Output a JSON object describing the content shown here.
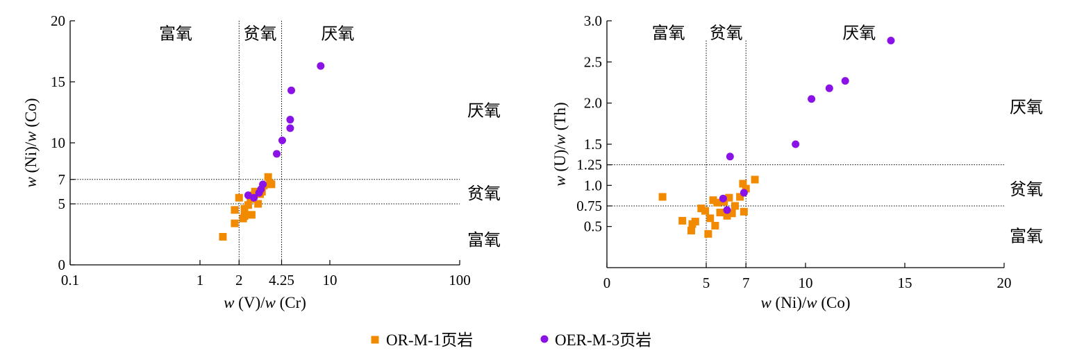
{
  "colors": {
    "or_m_1": "#F28A00",
    "oer_m_3": "#8A12E6",
    "axis": "#000000"
  },
  "legend": {
    "items": [
      {
        "label": "OR-M-1页岩",
        "marker": "square",
        "color_key": "or_m_1"
      },
      {
        "label": "OER-M-3页岩",
        "marker": "circle",
        "color_key": "oer_m_3"
      }
    ]
  },
  "chart_data": [
    {
      "type": "scatter",
      "xlabel_parts": [
        {
          "text": "w",
          "italic": true
        },
        {
          "text": " (V)/",
          "italic": false
        },
        {
          "text": "w",
          "italic": true
        },
        {
          "text": " (Cr)",
          "italic": false
        }
      ],
      "ylabel_parts": [
        {
          "text": "w",
          "italic": true
        },
        {
          "text": " (Ni)/",
          "italic": false
        },
        {
          "text": "w",
          "italic": true
        },
        {
          "text": " (Co)",
          "italic": false
        }
      ],
      "x_scale": "log",
      "xlim": [
        0.1,
        100
      ],
      "ylim": [
        0,
        20
      ],
      "x_ticks": [
        {
          "value": 0.1,
          "label": "0.1"
        },
        {
          "value": 1,
          "label": "1"
        },
        {
          "value": 2,
          "label": "2"
        },
        {
          "value": 4.25,
          "label": "4.25"
        },
        {
          "value": 10,
          "label": "10"
        },
        {
          "value": 100,
          "label": "100"
        }
      ],
      "y_ticks": [
        {
          "value": 0,
          "label": "0"
        },
        {
          "value": 5,
          "label": "5"
        },
        {
          "value": 7,
          "label": "7"
        },
        {
          "value": 10,
          "label": "10"
        },
        {
          "value": 15,
          "label": "15"
        },
        {
          "value": 20,
          "label": "20"
        }
      ],
      "vlines": [
        2,
        4.25
      ],
      "hlines": [
        5,
        7
      ],
      "zones_top": [
        {
          "label": "富氧",
          "x": 0.65,
          "y": 19
        },
        {
          "label": "贫氧",
          "x": 2.9,
          "y": 19
        },
        {
          "label": "厌氧",
          "x": 11.5,
          "y": 19
        }
      ],
      "zones_right": [
        {
          "label": "厌氧",
          "y": 12.7
        },
        {
          "label": "贫氧",
          "y": 5.9
        },
        {
          "label": "富氧",
          "y": 2.1
        }
      ],
      "series": [
        {
          "name": "OR-M-1页岩",
          "marker": "square",
          "color_key": "or_m_1",
          "points": [
            [
              1.5,
              2.3
            ],
            [
              1.85,
              4.5
            ],
            [
              1.85,
              3.4
            ],
            [
              2.0,
              5.5
            ],
            [
              2.15,
              3.8
            ],
            [
              2.2,
              4.0
            ],
            [
              2.2,
              4.6
            ],
            [
              2.35,
              4.9
            ],
            [
              2.45,
              5.4
            ],
            [
              2.5,
              4.1
            ],
            [
              2.6,
              5.7
            ],
            [
              2.65,
              6.0
            ],
            [
              2.8,
              5.0
            ],
            [
              2.9,
              5.8
            ],
            [
              3.0,
              6.0
            ],
            [
              3.1,
              6.5
            ],
            [
              3.35,
              7.2
            ],
            [
              3.45,
              6.7
            ],
            [
              3.55,
              6.6
            ]
          ]
        },
        {
          "name": "OER-M-3页岩",
          "marker": "circle",
          "color_key": "oer_m_3",
          "points": [
            [
              2.35,
              5.7
            ],
            [
              2.6,
              5.5
            ],
            [
              2.85,
              5.9
            ],
            [
              2.95,
              6.2
            ],
            [
              3.05,
              6.6
            ],
            [
              3.9,
              9.1
            ],
            [
              4.3,
              10.2
            ],
            [
              4.95,
              11.2
            ],
            [
              4.95,
              11.9
            ],
            [
              5.05,
              14.3
            ],
            [
              8.5,
              16.3
            ]
          ]
        }
      ]
    },
    {
      "type": "scatter",
      "xlabel_parts": [
        {
          "text": "w",
          "italic": true
        },
        {
          "text": " (Ni)/",
          "italic": false
        },
        {
          "text": "w",
          "italic": true
        },
        {
          "text": " (Co)",
          "italic": false
        }
      ],
      "ylabel_parts": [
        {
          "text": "w",
          "italic": true
        },
        {
          "text": " (U)/",
          "italic": false
        },
        {
          "text": "w",
          "italic": true
        },
        {
          "text": " (Th)",
          "italic": false
        }
      ],
      "x_scale": "linear",
      "xlim": [
        0,
        20
      ],
      "ylim": [
        0,
        3.0
      ],
      "x_ticks": [
        {
          "value": 0,
          "label": "0"
        },
        {
          "value": 5,
          "label": "5"
        },
        {
          "value": 7,
          "label": "7"
        },
        {
          "value": 10,
          "label": "10"
        },
        {
          "value": 15,
          "label": "15"
        },
        {
          "value": 20,
          "label": "20"
        }
      ],
      "y_ticks": [
        {
          "value": 0.5,
          "label": "0.5"
        },
        {
          "value": 0.75,
          "label": "0.75"
        },
        {
          "value": 1.0,
          "label": "1.0"
        },
        {
          "value": 1.25,
          "label": "1.25"
        },
        {
          "value": 1.5,
          "label": "1.5"
        },
        {
          "value": 2.0,
          "label": "2.0"
        },
        {
          "value": 2.5,
          "label": "2.5"
        },
        {
          "value": 3.0,
          "label": "3.0"
        }
      ],
      "vlines": [
        5,
        7
      ],
      "vline_top": 2.76,
      "hlines": [
        0.75,
        1.25
      ],
      "zones_top": [
        {
          "label": "富氧",
          "x": 3.1,
          "y": 2.86
        },
        {
          "label": "贫氧",
          "x": 6.0,
          "y": 2.86
        },
        {
          "label": "厌氧",
          "x": 12.7,
          "y": 2.86
        }
      ],
      "zones_right": [
        {
          "label": "厌氧",
          "y": 1.96
        },
        {
          "label": "贫氧",
          "y": 0.96
        },
        {
          "label": "富氧",
          "y": 0.39
        }
      ],
      "series": [
        {
          "name": "OR-M-1页岩",
          "marker": "square",
          "color_key": "or_m_1",
          "points": [
            [
              2.8,
              0.86
            ],
            [
              3.8,
              0.57
            ],
            [
              4.25,
              0.45
            ],
            [
              4.3,
              0.53
            ],
            [
              4.45,
              0.56
            ],
            [
              4.75,
              0.72
            ],
            [
              4.95,
              0.69
            ],
            [
              5.1,
              0.41
            ],
            [
              5.2,
              0.6
            ],
            [
              5.35,
              0.82
            ],
            [
              5.45,
              0.51
            ],
            [
              5.55,
              0.79
            ],
            [
              5.7,
              0.67
            ],
            [
              5.9,
              0.8
            ],
            [
              6.05,
              0.63
            ],
            [
              6.15,
              0.85
            ],
            [
              6.3,
              0.66
            ],
            [
              6.45,
              0.75
            ],
            [
              6.7,
              0.86
            ],
            [
              6.85,
              1.02
            ],
            [
              6.9,
              0.68
            ],
            [
              7.0,
              0.96
            ],
            [
              7.45,
              1.07
            ]
          ]
        },
        {
          "name": "OER-M-3页岩",
          "marker": "circle",
          "color_key": "oer_m_3",
          "points": [
            [
              5.85,
              0.84
            ],
            [
              6.05,
              0.7
            ],
            [
              6.2,
              1.35
            ],
            [
              6.9,
              0.91
            ],
            [
              9.5,
              1.5
            ],
            [
              10.3,
              2.05
            ],
            [
              11.2,
              2.18
            ],
            [
              12.0,
              2.27
            ],
            [
              14.3,
              2.76
            ]
          ]
        }
      ]
    }
  ]
}
